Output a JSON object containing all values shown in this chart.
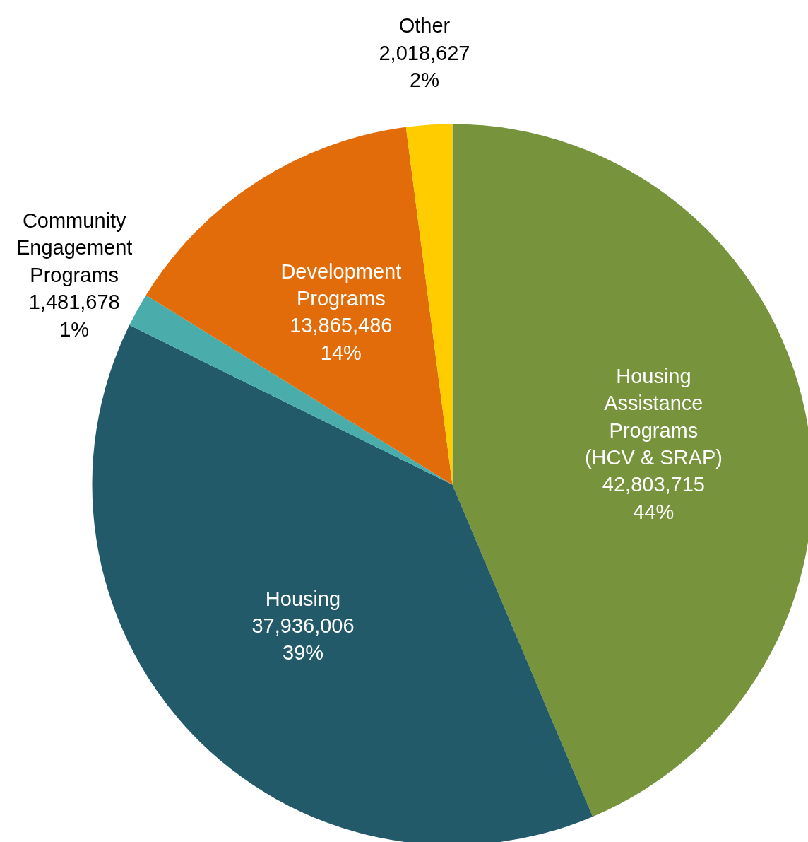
{
  "chart_data": {
    "type": "pie",
    "categories": [
      "Housing\nAssistance\nPrograms\n(HCV & SRAP)",
      "Housing",
      "Community\nEngagement\nPrograms",
      "Development\nPrograms",
      "Other"
    ],
    "values": [
      42803715,
      37936006,
      1481678,
      13865486,
      2018627
    ],
    "colors": [
      "#77933c",
      "#225a6a",
      "#4bacac",
      "#e36c0a",
      "#ffcc00"
    ],
    "value_labels": [
      "42,803,715\n44%",
      "37,936,006\n39%",
      "1,481,678\n1%",
      "13,865,486\n14%",
      "2,018,627\n2%"
    ]
  }
}
